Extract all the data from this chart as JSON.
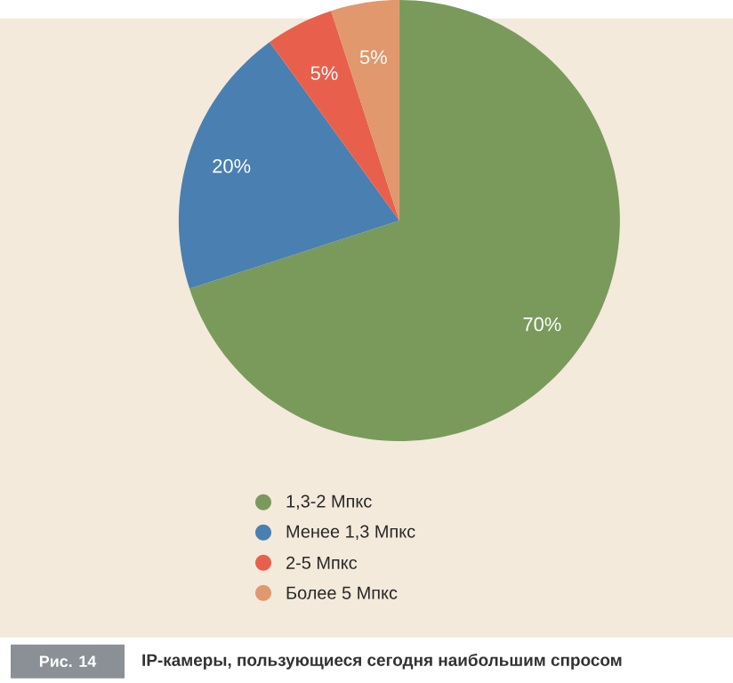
{
  "chart_data": {
    "type": "pie",
    "categories": [
      "1,3-2 Мпкс",
      "Менее 1,3 Мпкс",
      "2-5 Мпкс",
      "Более 5 Мпкс"
    ],
    "values": [
      70,
      20,
      5,
      5
    ],
    "colors": [
      "#7a9a5c",
      "#4a7fb1",
      "#e8604c",
      "#e0986c"
    ],
    "value_labels": [
      "70%",
      "20%",
      "5%",
      "5%"
    ],
    "legend": "bottom",
    "annotations": [
      "Рис. 14",
      "IP-камеры, пользующиеся сегодня наибольшим спросом"
    ]
  }
}
